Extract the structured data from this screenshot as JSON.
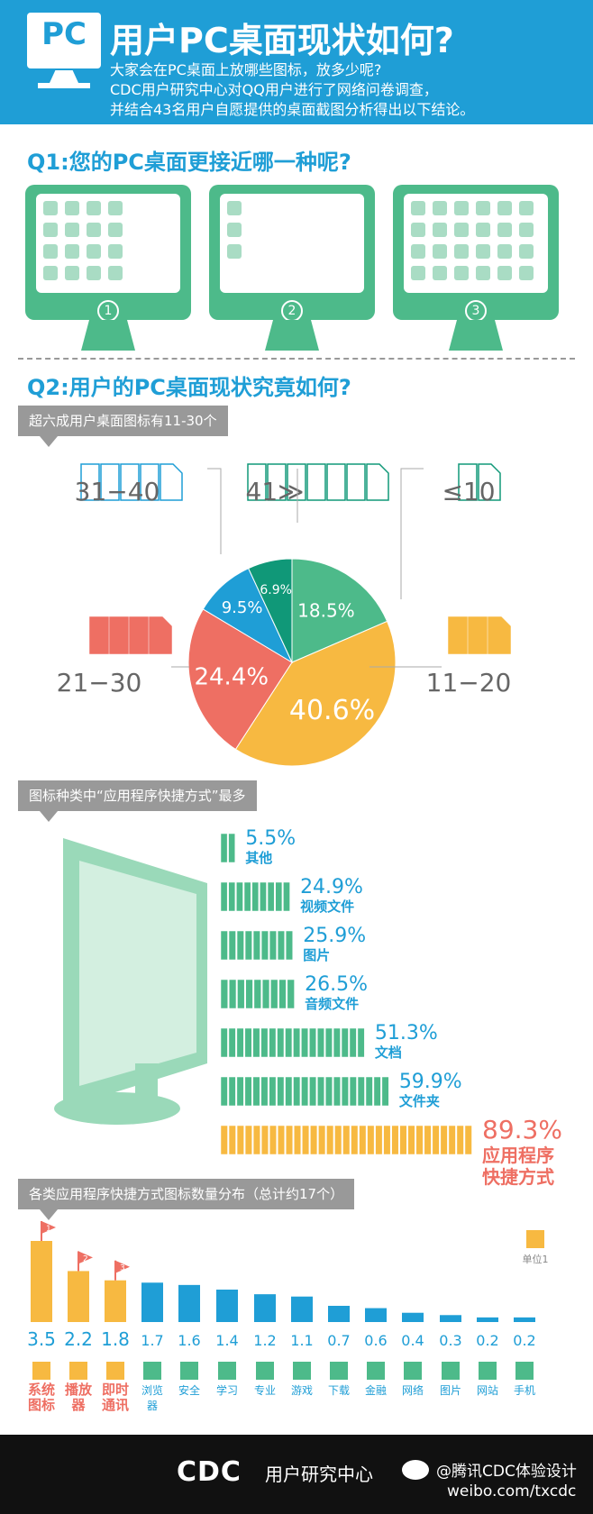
{
  "header": {
    "logo": "PC",
    "title": "用户PC桌面现状如何?",
    "intro": [
      "大家会在PC桌面上放哪些图标，放多少呢?",
      "CDC用户研究中心对QQ用户进行了网络问卷调查，",
      "并结合43名用户自愿提供的桌面截图分析得出以下结论。"
    ]
  },
  "q1": {
    "title": "Q1:您的PC桌面更接近哪一种呢?",
    "options": [
      "1",
      "2",
      "3"
    ]
  },
  "q2": {
    "title": "Q2:用户的PC桌面现状究竟如何?",
    "tag1": "超六成用户桌面图标有11-30个",
    "tag2": "图标种类中“应用程序快捷方式”最多",
    "tag3": "各类应用程序快捷方式图标数量分布（总计约17个）"
  },
  "chart_data": [
    {
      "type": "pie",
      "categories": [
        "≤10",
        "11-20",
        "21-30",
        "31-40",
        "41≥"
      ],
      "display_labels": [
        "≤10",
        "11−20",
        "21−30",
        "31−40",
        "41≫"
      ],
      "values": [
        18.5,
        40.6,
        24.4,
        9.5,
        6.9
      ],
      "value_labels": [
        "18.5%",
        "40.6%",
        "24.4%",
        "9.5%",
        "6.9%"
      ],
      "colors": [
        "#4dba8a",
        "#f7b941",
        "#ee6f63",
        "#1f9ed6",
        "#109878"
      ],
      "unit": "%"
    },
    {
      "type": "bar",
      "orientation": "horizontal",
      "categories": [
        "其他",
        "视频文件",
        "图片",
        "音频文件",
        "文档",
        "文件夹",
        "应用程序快捷方式"
      ],
      "values": [
        5.5,
        24.9,
        25.9,
        26.5,
        51.3,
        59.9,
        89.3
      ],
      "value_labels": [
        "5.5%",
        "24.9%",
        "25.9%",
        "26.5%",
        "51.3%",
        "59.9%",
        "89.3%"
      ],
      "highlight": "应用程序快捷方式",
      "colors": {
        "normal": "#4dba8a",
        "highlight": "#f7b941",
        "text_highlight": "#ee6f63"
      }
    },
    {
      "type": "bar",
      "categories": [
        "系统图标",
        "播放器",
        "即时通讯",
        "浏览器",
        "安全",
        "学习",
        "专业",
        "游戏",
        "下载",
        "金融",
        "网络",
        "图片",
        "网站",
        "手机"
      ],
      "label_lines": [
        [
          "系统",
          "图标"
        ],
        [
          "播放",
          "器"
        ],
        [
          "即时",
          "通讯"
        ],
        [
          "浏览",
          "器"
        ],
        [
          "安全"
        ],
        [
          "学习"
        ],
        [
          "专业"
        ],
        [
          "游戏"
        ],
        [
          "下载"
        ],
        [
          "金融"
        ],
        [
          "网络"
        ],
        [
          "图片"
        ],
        [
          "网站"
        ],
        [
          "手机"
        ]
      ],
      "values": [
        3.5,
        2.2,
        1.8,
        1.7,
        1.6,
        1.4,
        1.2,
        1.1,
        0.7,
        0.6,
        0.4,
        0.3,
        0.2,
        0.2
      ],
      "value_labels": [
        "3.5",
        "2.2",
        "1.8",
        "1.7",
        "1.6",
        "1.4",
        "1.2",
        "1.1",
        "0.7",
        "0.6",
        "0.4",
        "0.3",
        "0.2",
        "0.2"
      ],
      "ranks": [
        "1",
        "2",
        "3"
      ],
      "legend": "单位1",
      "colors": {
        "top3": "#f7b941",
        "rest": "#1f9ed6",
        "top3_label": "#ee6f63",
        "icon": "#4dba8a"
      }
    }
  ],
  "footer": {
    "brand": "CDC",
    "brand_sub": "用户研究中心",
    "weibo": "@腾讯CDC体验设计",
    "url": "weibo.com/txcdc"
  }
}
